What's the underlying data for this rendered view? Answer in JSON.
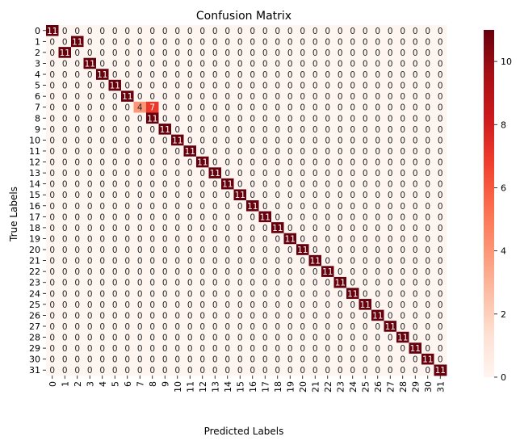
{
  "chart_data": {
    "type": "heatmap",
    "title": "Confusion Matrix",
    "xlabel": "Predicted Labels",
    "ylabel": "True Labels",
    "x_tick_labels": [
      "0",
      "1",
      "2",
      "3",
      "4",
      "5",
      "6",
      "7",
      "8",
      "9",
      "10",
      "11",
      "12",
      "13",
      "14",
      "15",
      "16",
      "17",
      "18",
      "19",
      "20",
      "21",
      "22",
      "23",
      "24",
      "25",
      "26",
      "27",
      "28",
      "29",
      "30",
      "31"
    ],
    "y_tick_labels": [
      "0",
      "1",
      "2",
      "3",
      "4",
      "5",
      "6",
      "7",
      "8",
      "9",
      "10",
      "11",
      "12",
      "13",
      "14",
      "15",
      "16",
      "17",
      "18",
      "19",
      "20",
      "21",
      "22",
      "23",
      "24",
      "25",
      "26",
      "27",
      "28",
      "29",
      "30",
      "31"
    ],
    "nonzero_cells": [
      {
        "row": 0,
        "col": 0,
        "value": 11
      },
      {
        "row": 1,
        "col": 2,
        "value": 11
      },
      {
        "row": 2,
        "col": 1,
        "value": 11
      },
      {
        "row": 3,
        "col": 3,
        "value": 11
      },
      {
        "row": 4,
        "col": 4,
        "value": 11
      },
      {
        "row": 5,
        "col": 5,
        "value": 11
      },
      {
        "row": 6,
        "col": 6,
        "value": 11
      },
      {
        "row": 7,
        "col": 7,
        "value": 4
      },
      {
        "row": 7,
        "col": 8,
        "value": 7
      },
      {
        "row": 8,
        "col": 8,
        "value": 11
      },
      {
        "row": 9,
        "col": 9,
        "value": 11
      },
      {
        "row": 10,
        "col": 10,
        "value": 11
      },
      {
        "row": 11,
        "col": 11,
        "value": 11
      },
      {
        "row": 12,
        "col": 12,
        "value": 11
      },
      {
        "row": 13,
        "col": 13,
        "value": 11
      },
      {
        "row": 14,
        "col": 14,
        "value": 11
      },
      {
        "row": 15,
        "col": 15,
        "value": 11
      },
      {
        "row": 16,
        "col": 16,
        "value": 11
      },
      {
        "row": 17,
        "col": 17,
        "value": 11
      },
      {
        "row": 18,
        "col": 18,
        "value": 11
      },
      {
        "row": 19,
        "col": 19,
        "value": 11
      },
      {
        "row": 20,
        "col": 20,
        "value": 11
      },
      {
        "row": 21,
        "col": 21,
        "value": 11
      },
      {
        "row": 22,
        "col": 22,
        "value": 11
      },
      {
        "row": 23,
        "col": 23,
        "value": 11
      },
      {
        "row": 24,
        "col": 24,
        "value": 11
      },
      {
        "row": 25,
        "col": 25,
        "value": 11
      },
      {
        "row": 26,
        "col": 26,
        "value": 11
      },
      {
        "row": 27,
        "col": 27,
        "value": 11
      },
      {
        "row": 28,
        "col": 28,
        "value": 11
      },
      {
        "row": 29,
        "col": 29,
        "value": 11
      },
      {
        "row": 30,
        "col": 30,
        "value": 11
      },
      {
        "row": 31,
        "col": 31,
        "value": 11
      }
    ],
    "default_value": 0,
    "colormap": "Reds",
    "color_low": "#fff5f0",
    "color_high": "#67000d",
    "colorbar": {
      "range": [
        0,
        11
      ],
      "ticks": [
        "0",
        "2",
        "4",
        "6",
        "8",
        "10"
      ]
    },
    "annotations": true,
    "grid": false
  }
}
